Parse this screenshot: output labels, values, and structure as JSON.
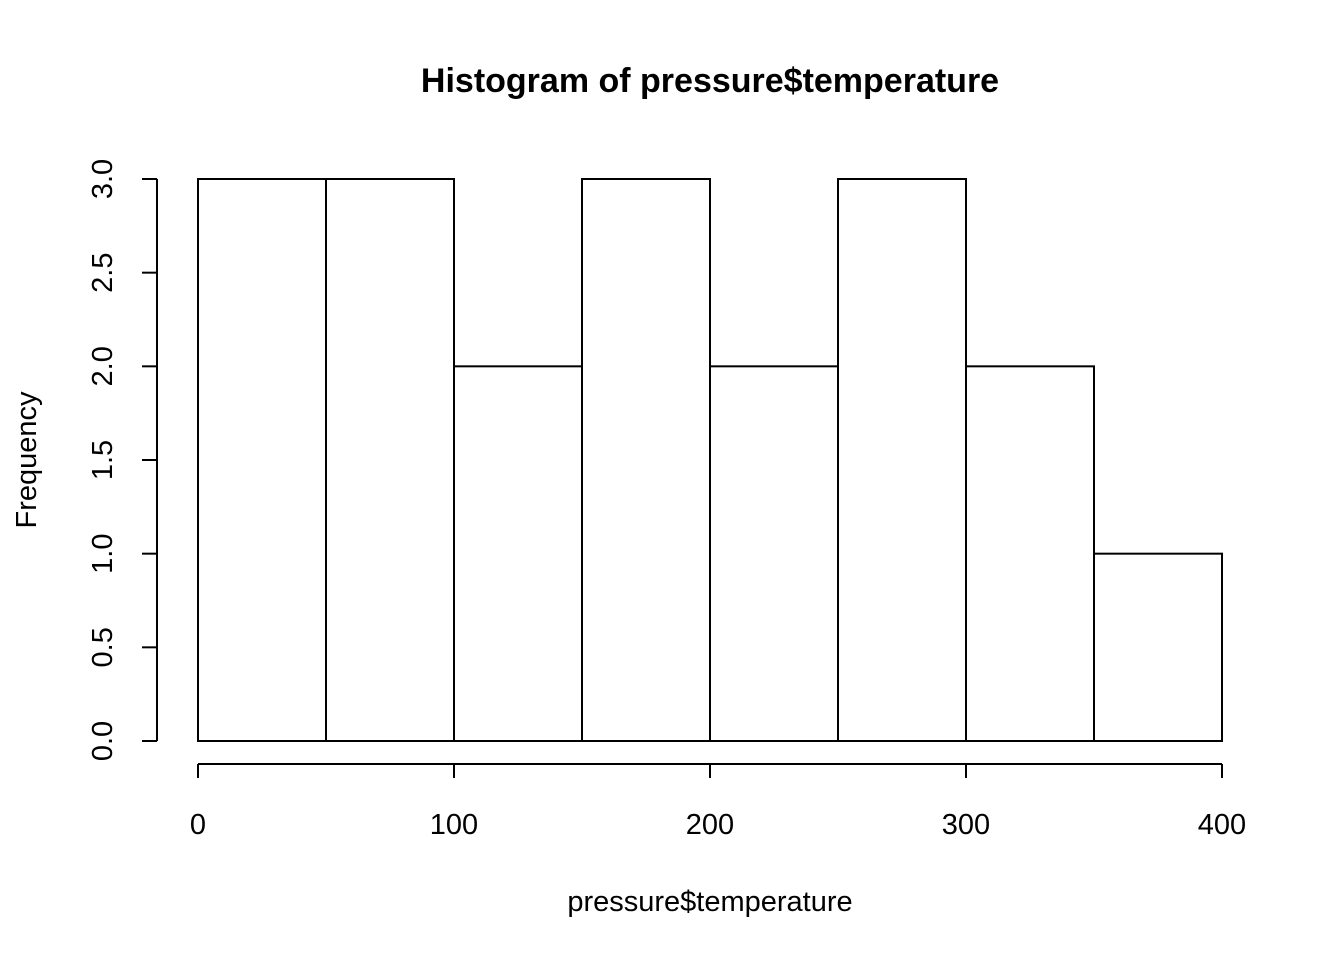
{
  "chart_data": {
    "type": "bar",
    "title": "Histogram of pressure$temperature",
    "xlabel": "pressure$temperature",
    "ylabel": "Frequency",
    "bins": [
      {
        "start": 0,
        "end": 50,
        "count": 3
      },
      {
        "start": 50,
        "end": 100,
        "count": 3
      },
      {
        "start": 100,
        "end": 150,
        "count": 2
      },
      {
        "start": 150,
        "end": 200,
        "count": 3
      },
      {
        "start": 200,
        "end": 250,
        "count": 2
      },
      {
        "start": 250,
        "end": 300,
        "count": 3
      },
      {
        "start": 300,
        "end": 350,
        "count": 2
      },
      {
        "start": 350,
        "end": 400,
        "count": 1
      }
    ],
    "xlim": [
      0,
      400
    ],
    "ylim": [
      0,
      3
    ],
    "x_ticks": [
      "0",
      "100",
      "200",
      "300",
      "400"
    ],
    "y_ticks": [
      "0.0",
      "0.5",
      "1.0",
      "1.5",
      "2.0",
      "2.5",
      "3.0"
    ],
    "grid": false,
    "bar_fill": "#ffffff",
    "bar_stroke": "#000000"
  }
}
